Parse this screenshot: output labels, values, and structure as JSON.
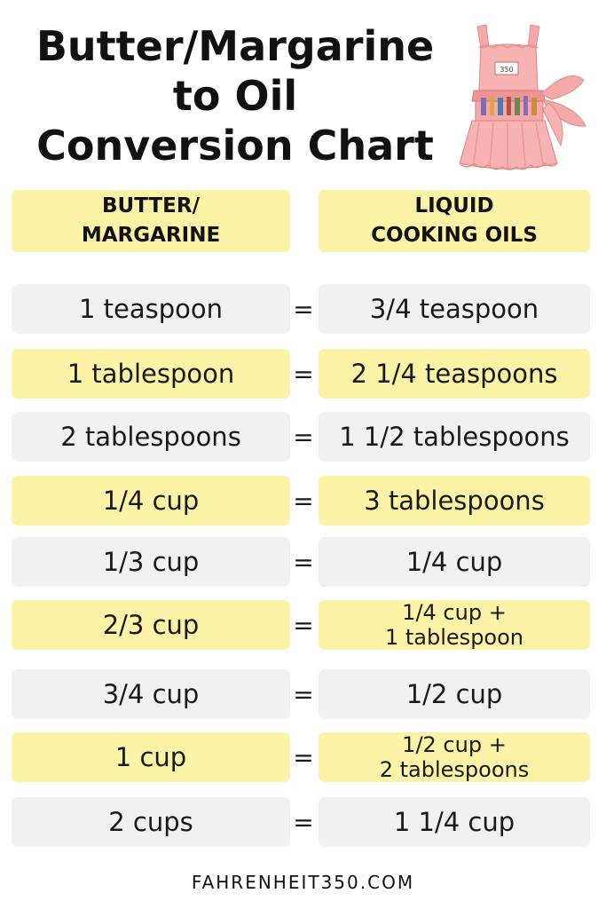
{
  "title": {
    "line1": "Butter/Margarine",
    "line2": "to Oil",
    "line3": "Conversion Chart"
  },
  "apron_image": {
    "icon": "pink-apron-illustration",
    "label_text": "350"
  },
  "headers": {
    "left": {
      "line1": "BUTTER/",
      "line2": "MARGARINE"
    },
    "right": {
      "line1": "LIQUID",
      "line2": "COOKING OILS"
    }
  },
  "equals_sign": "=",
  "rows": [
    {
      "butter": "1 teaspoon",
      "oil": "3/4 teaspoon",
      "oil2": "",
      "style": "gray"
    },
    {
      "butter": "1 tablespoon",
      "oil": "2 1/4 teaspoons",
      "oil2": "",
      "style": "yellow"
    },
    {
      "butter": "2 tablespoons",
      "oil": "1 1/2 tablespoons",
      "oil2": "",
      "style": "gray"
    },
    {
      "butter": "1/4 cup",
      "oil": "3 tablespoons",
      "oil2": "",
      "style": "yellow"
    },
    {
      "butter": "1/3 cup",
      "oil": "1/4 cup",
      "oil2": "",
      "style": "gray"
    },
    {
      "butter": "2/3 cup",
      "oil": "1/4 cup +",
      "oil2": "1 tablespoon",
      "style": "yellow"
    },
    {
      "butter": "3/4 cup",
      "oil": "1/2 cup",
      "oil2": "",
      "style": "gray"
    },
    {
      "butter": "1 cup",
      "oil": "1/2 cup +",
      "oil2": "2 tablespoons",
      "style": "yellow"
    },
    {
      "butter": "2 cups",
      "oil": "1 1/4 cup",
      "oil2": "",
      "style": "gray"
    }
  ],
  "footer": "FAHRENHEIT350.COM",
  "colors": {
    "yellow": "#fdf3a7",
    "gray": "#f1f1f1",
    "apron_pink": "#f4a9a8",
    "text": "#111111"
  }
}
